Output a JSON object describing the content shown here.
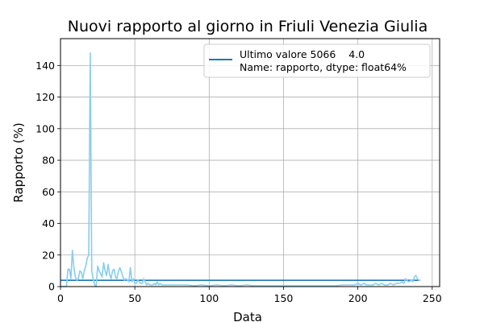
{
  "chart_data": {
    "type": "line",
    "title": "Nuovi rapporto al giorno in Friuli Venezia Giulia",
    "xlabel": "Data",
    "ylabel": "Rapporto (%)",
    "xlim": [
      0,
      255
    ],
    "ylim": [
      0,
      157
    ],
    "xticks": [
      0,
      50,
      100,
      150,
      200,
      250
    ],
    "yticks": [
      0,
      20,
      40,
      60,
      80,
      100,
      120,
      140
    ],
    "grid": true,
    "legend": {
      "placement": "top-right",
      "line1": "Ultimo valore 5066    4.0",
      "line2": "Name: rapporto, dtype: float64%"
    },
    "hline": {
      "y": 4.0,
      "x_start": 0,
      "x_end": 242,
      "color": "#1f77b4"
    },
    "series": [
      {
        "color": "#87ceeb",
        "x": [
          0,
          1,
          2,
          3,
          4,
          5,
          6,
          7,
          8,
          9,
          10,
          11,
          12,
          13,
          14,
          15,
          16,
          17,
          18,
          19,
          20,
          21,
          22,
          23,
          24,
          25,
          26,
          27,
          28,
          29,
          30,
          31,
          32,
          33,
          34,
          35,
          36,
          37,
          38,
          39,
          40,
          41,
          42,
          43,
          44,
          45,
          46,
          47,
          48,
          49,
          50,
          51,
          52,
          53,
          54,
          55,
          56,
          57,
          58,
          59,
          60,
          61,
          62,
          63,
          64,
          65,
          66,
          67,
          68,
          69,
          70,
          75,
          80,
          85,
          90,
          95,
          100,
          105,
          110,
          115,
          120,
          125,
          130,
          135,
          140,
          145,
          150,
          155,
          160,
          165,
          170,
          175,
          180,
          185,
          190,
          195,
          198,
          200,
          202,
          204,
          206,
          208,
          210,
          212,
          214,
          216,
          218,
          220,
          222,
          224,
          226,
          228,
          230,
          231,
          232,
          234,
          236,
          237,
          238,
          239,
          240,
          241,
          242
        ],
        "y": [
          0,
          0,
          0,
          0,
          0,
          11,
          11,
          5,
          23,
          12,
          6,
          4,
          5,
          10,
          9,
          5,
          10,
          13,
          18,
          20,
          148,
          10,
          5,
          1,
          0,
          13,
          10,
          8,
          6,
          15,
          10,
          7,
          14,
          8,
          5,
          10,
          11,
          6,
          5,
          10,
          12,
          9,
          6,
          4,
          5,
          4,
          3,
          12,
          3,
          5,
          2,
          2,
          4,
          3,
          2,
          2,
          5,
          3,
          1,
          2,
          1,
          1,
          1,
          2,
          1,
          3,
          1,
          2,
          1,
          1,
          1,
          1,
          1,
          1,
          0.5,
          1,
          0.5,
          1,
          0.5,
          1,
          0.5,
          1,
          0.5,
          0.5,
          0.5,
          0.5,
          0.5,
          0.5,
          0.5,
          0.5,
          0.5,
          0.5,
          0.5,
          0.5,
          1,
          1,
          1,
          2,
          1,
          2,
          1,
          1,
          1,
          2,
          1,
          2,
          1,
          1,
          2,
          1,
          2,
          2,
          3,
          2,
          5,
          3,
          4,
          3,
          6,
          7,
          5,
          4,
          4
        ]
      }
    ]
  }
}
